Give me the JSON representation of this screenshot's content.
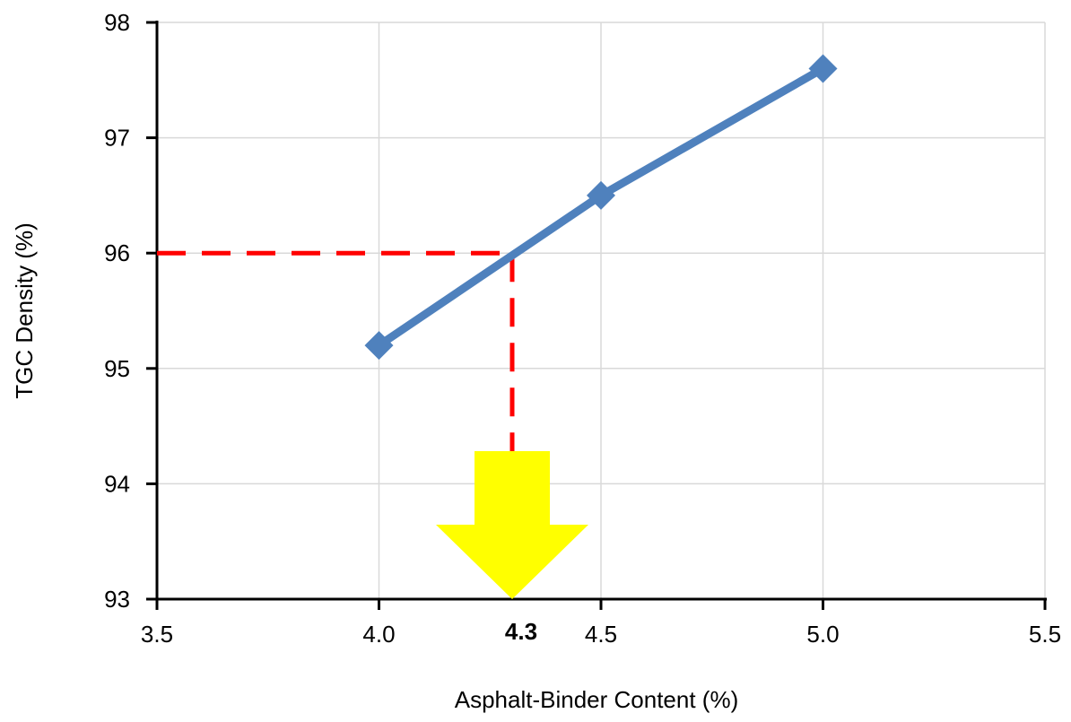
{
  "chart_data": {
    "type": "line",
    "title": "",
    "xlabel": "Asphalt-Binder Content (%)",
    "ylabel": "TGC Density (%)",
    "xlim": [
      3.5,
      5.5
    ],
    "ylim": [
      93,
      98
    ],
    "x_ticks": [
      "3.5",
      "4.0",
      "4.5",
      "5.0",
      "5.5"
    ],
    "y_ticks": [
      "93",
      "94",
      "95",
      "96",
      "97",
      "98"
    ],
    "grid": true,
    "legend": "none",
    "series": [
      {
        "x": [
          4.0,
          4.5,
          5.0
        ],
        "y": [
          95.2,
          96.5,
          97.6
        ],
        "marker": "diamond",
        "color": "#4F81BD"
      }
    ],
    "annotations": {
      "target_y": 96,
      "target_x": 4.3,
      "target_label": "4.3",
      "guide_color": "#FF0000",
      "arrow_color": "#FFFF00"
    }
  }
}
